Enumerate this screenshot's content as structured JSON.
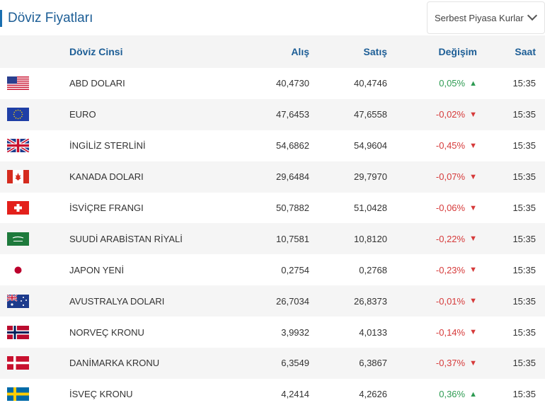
{
  "header": {
    "title": "Döviz Fiyatları",
    "dropdown_label": "Serbest Piyasa Kurlar"
  },
  "table": {
    "columns": [
      "Döviz Cinsi",
      "Alış",
      "Satış",
      "Değişim",
      "Saat"
    ],
    "rows": [
      {
        "flag": "us-flag-icon",
        "name": "ABD DOLARI",
        "alis": "40,4730",
        "satis": "40,4746",
        "degisim": "0,05%",
        "direction": "up",
        "saat": "15:35"
      },
      {
        "flag": "eu-flag-icon",
        "name": "EURO",
        "alis": "47,6453",
        "satis": "47,6558",
        "degisim": "-0,02%",
        "direction": "down",
        "saat": "15:35"
      },
      {
        "flag": "uk-flag-icon",
        "name": "İNGİLİZ STERLİNİ",
        "alis": "54,6862",
        "satis": "54,9604",
        "degisim": "-0,45%",
        "direction": "down",
        "saat": "15:35"
      },
      {
        "flag": "ca-flag-icon",
        "name": "KANADA DOLARI",
        "alis": "29,6484",
        "satis": "29,7970",
        "degisim": "-0,07%",
        "direction": "down",
        "saat": "15:35"
      },
      {
        "flag": "ch-flag-icon",
        "name": "İSVİÇRE FRANGI",
        "alis": "50,7882",
        "satis": "51,0428",
        "degisim": "-0,06%",
        "direction": "down",
        "saat": "15:35"
      },
      {
        "flag": "sa-flag-icon",
        "name": "SUUDİ ARABİSTAN RİYALİ",
        "alis": "10,7581",
        "satis": "10,8120",
        "degisim": "-0,22%",
        "direction": "down",
        "saat": "15:35"
      },
      {
        "flag": "jp-flag-icon",
        "name": "JAPON YENİ",
        "alis": "0,2754",
        "satis": "0,2768",
        "degisim": "-0,23%",
        "direction": "down",
        "saat": "15:35"
      },
      {
        "flag": "au-flag-icon",
        "name": "AVUSTRALYA DOLARI",
        "alis": "26,7034",
        "satis": "26,8373",
        "degisim": "-0,01%",
        "direction": "down",
        "saat": "15:35"
      },
      {
        "flag": "no-flag-icon",
        "name": "NORVEÇ KRONU",
        "alis": "3,9932",
        "satis": "4,0133",
        "degisim": "-0,14%",
        "direction": "down",
        "saat": "15:35"
      },
      {
        "flag": "dk-flag-icon",
        "name": "DANİMARKA KRONU",
        "alis": "6,3549",
        "satis": "6,3867",
        "degisim": "-0,37%",
        "direction": "down",
        "saat": "15:35"
      },
      {
        "flag": "se-flag-icon",
        "name": "İSVEÇ KRONU",
        "alis": "4,2414",
        "satis": "4,2626",
        "degisim": "0,36%",
        "direction": "up",
        "saat": "15:35"
      }
    ]
  },
  "colors": {
    "title": "#1d5e96",
    "up": "#2e9b52",
    "down": "#d63a3a"
  }
}
